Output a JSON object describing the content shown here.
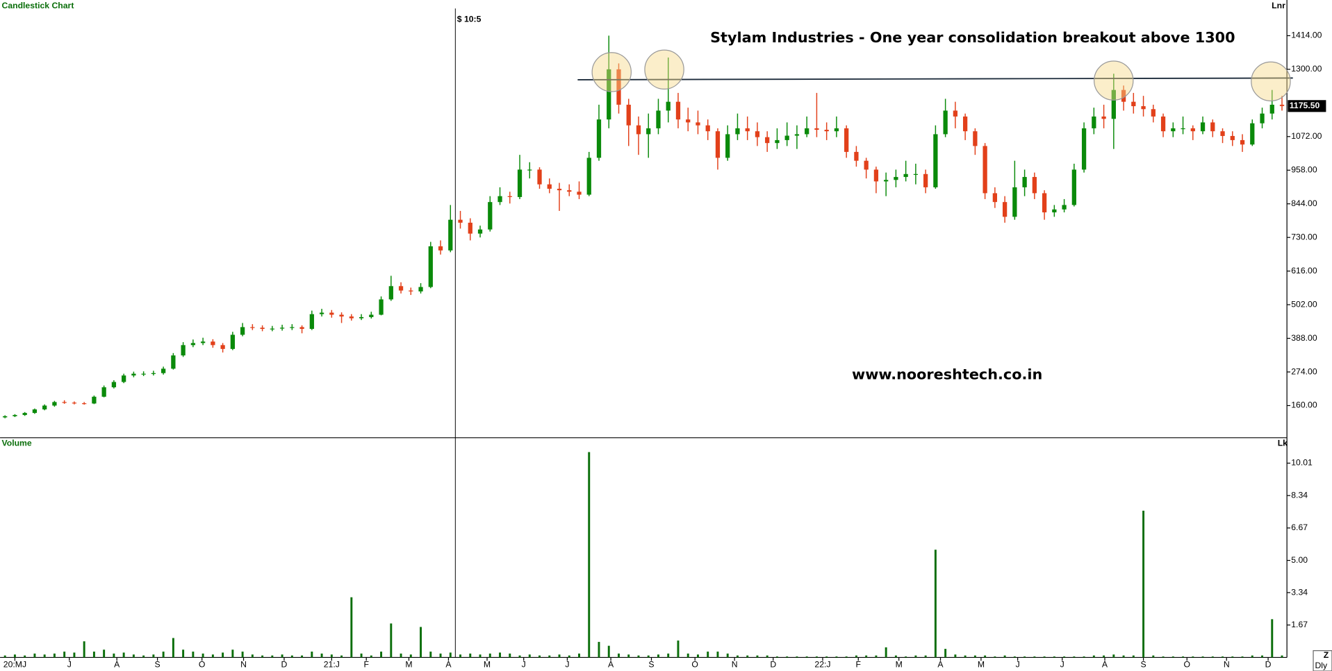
{
  "chart_data": [
    {
      "type": "candlestick",
      "panel_label": "Candlestick Chart",
      "scale_label": "Lnr",
      "title": "Stylam Industries - One year consolidation breakout above 1300",
      "watermark": "www.nooreshtech.co.in",
      "crosshair_label": "$ 10:5",
      "last_price_label": "1175.50",
      "up_color": "#0a8a0a",
      "down_color": "#e2401a",
      "xlim": [
        -0.5,
        129.5
      ],
      "ylim": [
        51,
        1535
      ],
      "yticks": [
        {
          "value": 160,
          "label": "160.00"
        },
        {
          "value": 274,
          "label": "274.00"
        },
        {
          "value": 388,
          "label": "388.00"
        },
        {
          "value": 502,
          "label": "502.00"
        },
        {
          "value": 616,
          "label": "616.00"
        },
        {
          "value": 730,
          "label": "730.00"
        },
        {
          "value": 844,
          "label": "844.00"
        },
        {
          "value": 958,
          "label": "958.00"
        },
        {
          "value": 1072,
          "label": "1072.00"
        },
        {
          "value": 1300,
          "label": "1300.00"
        },
        {
          "value": 1414,
          "label": "1414.00"
        }
      ],
      "ohlc": [
        [
          120,
          127,
          117,
          124
        ],
        [
          124,
          131,
          121,
          128
        ],
        [
          128,
          138,
          125,
          135
        ],
        [
          135,
          150,
          132,
          147
        ],
        [
          147,
          164,
          144,
          160
        ],
        [
          160,
          176,
          156,
          172
        ],
        [
          172,
          178,
          166,
          170
        ],
        [
          170,
          174,
          164,
          168
        ],
        [
          168,
          172,
          163,
          167
        ],
        [
          167,
          194,
          165,
          190
        ],
        [
          190,
          228,
          188,
          222
        ],
        [
          222,
          246,
          218,
          240
        ],
        [
          240,
          268,
          236,
          262
        ],
        [
          262,
          275,
          256,
          268
        ],
        [
          268,
          276,
          260,
          268
        ],
        [
          268,
          278,
          262,
          270
        ],
        [
          270,
          292,
          265,
          285
        ],
        [
          285,
          338,
          282,
          330
        ],
        [
          330,
          375,
          325,
          365
        ],
        [
          365,
          384,
          358,
          372
        ],
        [
          372,
          390,
          365,
          377
        ],
        [
          377,
          385,
          356,
          365
        ],
        [
          365,
          372,
          340,
          352
        ],
        [
          352,
          410,
          348,
          400
        ],
        [
          400,
          440,
          395,
          426
        ],
        [
          426,
          436,
          416,
          424
        ],
        [
          424,
          432,
          412,
          420
        ],
        [
          420,
          430,
          412,
          421
        ],
        [
          421,
          434,
          414,
          424
        ],
        [
          424,
          436,
          416,
          426
        ],
        [
          426,
          432,
          405,
          420
        ],
        [
          420,
          482,
          416,
          470
        ],
        [
          470,
          488,
          462,
          475
        ],
        [
          475,
          484,
          458,
          468
        ],
        [
          468,
          476,
          440,
          462
        ],
        [
          462,
          470,
          448,
          456
        ],
        [
          456,
          470,
          450,
          460
        ],
        [
          460,
          478,
          455,
          468
        ],
        [
          468,
          530,
          466,
          520
        ],
        [
          520,
          600,
          515,
          565
        ],
        [
          565,
          578,
          540,
          550
        ],
        [
          550,
          560,
          535,
          547
        ],
        [
          547,
          575,
          540,
          562
        ],
        [
          562,
          715,
          558,
          700
        ],
        [
          700,
          720,
          672,
          686
        ],
        [
          686,
          840,
          680,
          790
        ],
        [
          790,
          820,
          760,
          780
        ],
        [
          780,
          795,
          720,
          743
        ],
        [
          743,
          770,
          730,
          757
        ],
        [
          757,
          870,
          750,
          850
        ],
        [
          850,
          900,
          840,
          870
        ],
        [
          870,
          885,
          845,
          867
        ],
        [
          867,
          1010,
          860,
          960
        ],
        [
          960,
          985,
          930,
          960
        ],
        [
          960,
          968,
          895,
          910
        ],
        [
          910,
          930,
          880,
          895
        ],
        [
          895,
          915,
          820,
          890
        ],
        [
          890,
          910,
          870,
          885
        ],
        [
          885,
          920,
          860,
          875
        ],
        [
          875,
          1020,
          870,
          1000
        ],
        [
          1000,
          1180,
          990,
          1130
        ],
        [
          1130,
          1414,
          1100,
          1300
        ],
        [
          1300,
          1320,
          1150,
          1180
        ],
        [
          1180,
          1200,
          1040,
          1110
        ],
        [
          1110,
          1140,
          1010,
          1080
        ],
        [
          1080,
          1150,
          1000,
          1100
        ],
        [
          1100,
          1200,
          1080,
          1160
        ],
        [
          1160,
          1340,
          1120,
          1190
        ],
        [
          1190,
          1220,
          1100,
          1130
        ],
        [
          1130,
          1170,
          1090,
          1120
        ],
        [
          1120,
          1160,
          1080,
          1110
        ],
        [
          1110,
          1130,
          1060,
          1090
        ],
        [
          1090,
          1100,
          960,
          1000
        ],
        [
          1000,
          1110,
          990,
          1080
        ],
        [
          1080,
          1150,
          1060,
          1100
        ],
        [
          1100,
          1140,
          1060,
          1090
        ],
        [
          1090,
          1120,
          1040,
          1070
        ],
        [
          1070,
          1090,
          1020,
          1050
        ],
        [
          1050,
          1100,
          1030,
          1060
        ],
        [
          1060,
          1120,
          1040,
          1075
        ],
        [
          1075,
          1110,
          1030,
          1080
        ],
        [
          1080,
          1140,
          1070,
          1100
        ],
        [
          1100,
          1220,
          1070,
          1095
        ],
        [
          1095,
          1120,
          1060,
          1090
        ],
        [
          1090,
          1140,
          1070,
          1100
        ],
        [
          1100,
          1110,
          1000,
          1020
        ],
        [
          1020,
          1040,
          970,
          990
        ],
        [
          990,
          1000,
          930,
          960
        ],
        [
          960,
          970,
          880,
          920
        ],
        [
          920,
          950,
          870,
          925
        ],
        [
          925,
          960,
          900,
          935
        ],
        [
          935,
          990,
          920,
          945
        ],
        [
          945,
          980,
          910,
          945
        ],
        [
          945,
          960,
          880,
          900
        ],
        [
          900,
          1110,
          895,
          1080
        ],
        [
          1080,
          1200,
          1070,
          1160
        ],
        [
          1160,
          1190,
          1100,
          1140
        ],
        [
          1140,
          1150,
          1060,
          1090
        ],
        [
          1090,
          1100,
          1010,
          1040
        ],
        [
          1040,
          1050,
          860,
          880
        ],
        [
          880,
          900,
          830,
          850
        ],
        [
          850,
          870,
          780,
          800
        ],
        [
          800,
          990,
          790,
          900
        ],
        [
          900,
          960,
          870,
          935
        ],
        [
          935,
          950,
          860,
          880
        ],
        [
          880,
          890,
          790,
          815
        ],
        [
          815,
          840,
          800,
          825
        ],
        [
          825,
          860,
          815,
          840
        ],
        [
          840,
          980,
          835,
          960
        ],
        [
          960,
          1120,
          950,
          1100
        ],
        [
          1100,
          1170,
          1080,
          1140
        ],
        [
          1140,
          1180,
          1100,
          1132
        ],
        [
          1132,
          1285,
          1030,
          1230
        ],
        [
          1230,
          1245,
          1160,
          1190
        ],
        [
          1190,
          1220,
          1150,
          1175
        ],
        [
          1175,
          1210,
          1140,
          1165
        ],
        [
          1165,
          1180,
          1120,
          1140
        ],
        [
          1140,
          1150,
          1070,
          1090
        ],
        [
          1090,
          1120,
          1070,
          1100
        ],
        [
          1100,
          1140,
          1080,
          1100
        ],
        [
          1100,
          1110,
          1060,
          1090
        ],
        [
          1090,
          1140,
          1080,
          1120
        ],
        [
          1120,
          1130,
          1070,
          1090
        ],
        [
          1090,
          1100,
          1050,
          1074
        ],
        [
          1074,
          1090,
          1040,
          1060
        ],
        [
          1060,
          1080,
          1020,
          1045
        ],
        [
          1045,
          1130,
          1040,
          1117
        ],
        [
          1117,
          1170,
          1100,
          1150
        ],
        [
          1150,
          1230,
          1130,
          1180
        ],
        [
          1180,
          1210,
          1160,
          1175.5
        ]
      ]
    },
    {
      "type": "bar",
      "panel_label": "Volume",
      "scale_label": "Lk",
      "interval_label": "Dly",
      "corner_label": "Z",
      "color": "#0a6e0a",
      "xlim": [
        -0.5,
        129.5
      ],
      "ylim": [
        0,
        11.32
      ],
      "yticks": [
        1.67,
        3.34,
        {
          "value": 5,
          "label": "5.00"
        },
        6.67,
        8.34,
        10.01
      ],
      "xticks": [
        {
          "value": 1,
          "label": "20:MJ"
        },
        {
          "value": 6.5,
          "label": "J"
        },
        {
          "value": 11.3,
          "label": "A"
        },
        {
          "value": 15.4,
          "label": "S"
        },
        {
          "value": 19.9,
          "label": "O"
        },
        {
          "value": 24.1,
          "label": "N"
        },
        {
          "value": 28.2,
          "label": "D"
        },
        {
          "value": 33,
          "label": "21:J"
        },
        {
          "value": 36.5,
          "label": "F"
        },
        {
          "value": 40.8,
          "label": "M"
        },
        {
          "value": 44.8,
          "label": "A"
        },
        {
          "value": 48.7,
          "label": "M"
        },
        {
          "value": 52.4,
          "label": "J"
        },
        {
          "value": 56.8,
          "label": "J"
        },
        {
          "value": 61.2,
          "label": "A"
        },
        {
          "value": 65.3,
          "label": "S"
        },
        {
          "value": 69.7,
          "label": "O"
        },
        {
          "value": 73.7,
          "label": "N"
        },
        {
          "value": 77.6,
          "label": "D"
        },
        {
          "value": 82.6,
          "label": "22:J"
        },
        {
          "value": 86.2,
          "label": "F"
        },
        {
          "value": 90.3,
          "label": "M"
        },
        {
          "value": 94.5,
          "label": "A"
        },
        {
          "value": 98.6,
          "label": "M"
        },
        {
          "value": 102.3,
          "label": "J"
        },
        {
          "value": 106.8,
          "label": "J"
        },
        {
          "value": 111.1,
          "label": "A"
        },
        {
          "value": 115,
          "label": "S"
        },
        {
          "value": 119.4,
          "label": "O"
        },
        {
          "value": 123.4,
          "label": "N"
        },
        {
          "value": 127.6,
          "label": "D"
        }
      ],
      "values": [
        0.1,
        0.15,
        0.1,
        0.2,
        0.15,
        0.2,
        0.3,
        0.25,
        0.83,
        0.3,
        0.4,
        0.2,
        0.25,
        0.15,
        0.1,
        0.15,
        0.3,
        1.0,
        0.4,
        0.3,
        0.2,
        0.15,
        0.25,
        0.4,
        0.3,
        0.15,
        0.1,
        0.1,
        0.15,
        0.1,
        0.1,
        0.3,
        0.2,
        0.15,
        0.1,
        3.1,
        0.2,
        0.1,
        0.3,
        1.75,
        0.2,
        0.15,
        1.57,
        0.3,
        0.2,
        0.25,
        0.15,
        0.2,
        0.15,
        0.2,
        0.25,
        0.2,
        0.1,
        0.15,
        0.1,
        0.1,
        0.15,
        0.1,
        0.2,
        10.58,
        0.8,
        0.6,
        0.2,
        0.15,
        0.1,
        0.1,
        0.15,
        0.2,
        0.87,
        0.2,
        0.15,
        0.3,
        0.3,
        0.2,
        0.1,
        0.1,
        0.1,
        0.1,
        0.05,
        0.05,
        0.05,
        0.05,
        0.05,
        0.05,
        0.05,
        0.05,
        0.1,
        0.1,
        0.1,
        0.52,
        0.1,
        0.05,
        0.1,
        0.1,
        5.55,
        0.44,
        0.15,
        0.1,
        0.1,
        0.1,
        0.05,
        0.1,
        0.05,
        0.05,
        0.05,
        0.05,
        0.05,
        0.05,
        0.05,
        0.05,
        0.1,
        0.1,
        0.15,
        0.1,
        0.1,
        7.56,
        0.1,
        0.05,
        0.05,
        0.05,
        0.05,
        0.05,
        0.05,
        0.05,
        0.05,
        0.05,
        0.1,
        0.1,
        1.97,
        0.1
      ]
    }
  ]
}
